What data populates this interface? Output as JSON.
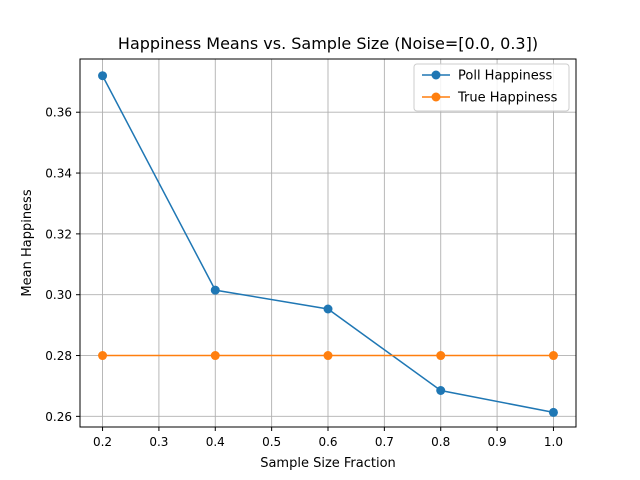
{
  "chart_data": {
    "type": "line",
    "title": "Happiness Means vs. Sample Size (Noise=[0.0, 0.3])",
    "xlabel": "Sample Size Fraction",
    "ylabel": "Mean Happiness",
    "xlim": [
      0.16,
      1.04
    ],
    "ylim": [
      0.2565,
      0.3775
    ],
    "x_ticks": [
      0.2,
      0.3,
      0.4,
      0.5,
      0.6,
      0.7,
      0.8,
      0.9,
      1.0
    ],
    "x_tick_labels": [
      "0.2",
      "0.3",
      "0.4",
      "0.5",
      "0.6",
      "0.7",
      "0.8",
      "0.9",
      "1.0"
    ],
    "y_ticks": [
      0.26,
      0.28,
      0.3,
      0.32,
      0.34,
      0.36
    ],
    "y_tick_labels": [
      "0.26",
      "0.28",
      "0.30",
      "0.32",
      "0.34",
      "0.36"
    ],
    "grid": true,
    "legend_position": "top-right",
    "x": [
      0.2,
      0.4,
      0.6,
      0.8,
      1.0
    ],
    "series": [
      {
        "name": "Poll Happiness",
        "color": "#1f77b4",
        "values": [
          0.372,
          0.3015,
          0.2953,
          0.2685,
          0.2613
        ]
      },
      {
        "name": "True Happiness",
        "color": "#ff7f0e",
        "values": [
          0.28,
          0.28,
          0.28,
          0.28,
          0.28
        ]
      }
    ]
  }
}
